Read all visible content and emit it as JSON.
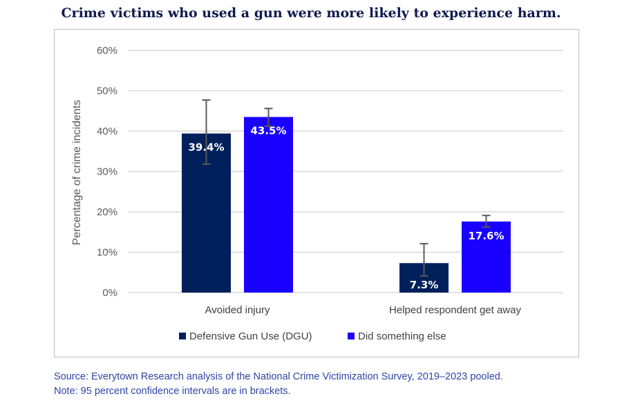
{
  "title": "Crime victims who used a gun were more likely to experience harm.",
  "chart_data": {
    "type": "bar",
    "categories": [
      "Avoided injury",
      "Helped respondent get away"
    ],
    "series": [
      {
        "name": "Defensive Gun Use (DGU)",
        "color": "#00205b",
        "values": [
          39.4,
          7.3
        ],
        "labels": [
          "39.4%",
          "7.3%"
        ],
        "ci": [
          [
            31.8,
            47.7
          ],
          [
            4.1,
            12.1
          ]
        ]
      },
      {
        "name": "Did something else",
        "color": "#1a00ff",
        "values": [
          43.5,
          17.6
        ],
        "labels": [
          "43.5%",
          "17.6%"
        ],
        "ci": [
          [
            41.2,
            45.6
          ],
          [
            16.2,
            19.1
          ]
        ]
      }
    ],
    "ylabel": "Percentage of crime incidents",
    "ylim": [
      0,
      60
    ],
    "yticks": [
      "0%",
      "10%",
      "20%",
      "30%",
      "40%",
      "50%",
      "60%"
    ],
    "grid": true,
    "legend": "bottom"
  },
  "source": "Source: Everytown Research analysis of the National Crime Victimization Survey, 2019–2023 pooled.",
  "note": "Note: 95 percent confidence intervals are in brackets."
}
